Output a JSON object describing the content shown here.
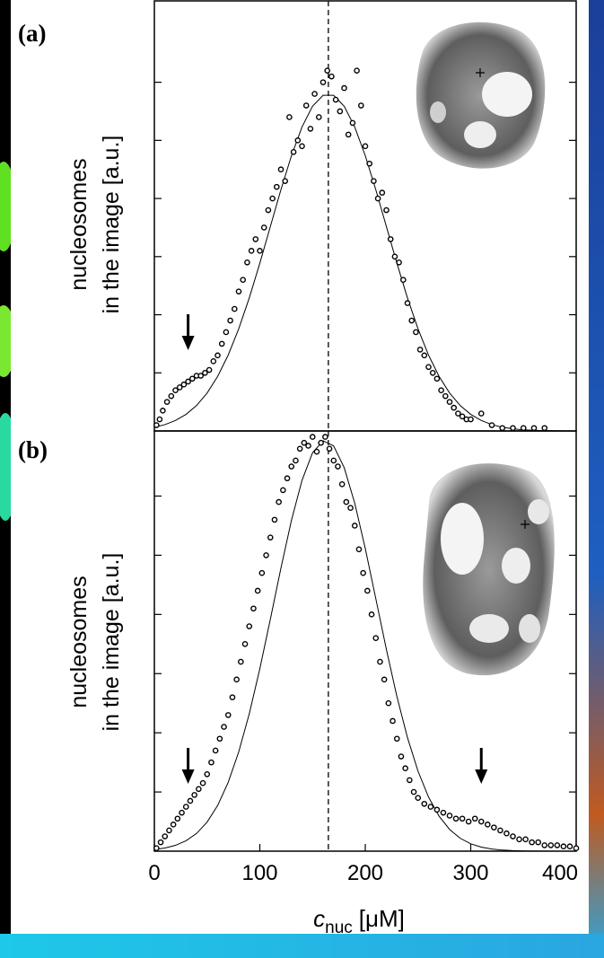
{
  "chart_data": [
    {
      "type": "scatter",
      "panel_label": "(a)",
      "y_label": [
        "nucleosomes",
        "in the image [a.u.]"
      ],
      "xlim": [
        0,
        400
      ],
      "ylim": [
        0,
        7.4
      ],
      "yticks": [
        1,
        2,
        3,
        4,
        5,
        6
      ],
      "vline_x": 165,
      "arrows_x": [
        32
      ],
      "series": [
        {
          "type": "line",
          "color": "#000000",
          "x": [
            0,
            10,
            20,
            30,
            40,
            50,
            60,
            70,
            80,
            90,
            100,
            110,
            120,
            130,
            140,
            150,
            160,
            170,
            180,
            190,
            200,
            210,
            220,
            230,
            240,
            250,
            260,
            270,
            280,
            290,
            300,
            310,
            320,
            330,
            340,
            350,
            360,
            370,
            380,
            390,
            400
          ],
          "values": [
            0.064,
            0.109,
            0.18,
            0.285,
            0.438,
            0.652,
            0.938,
            1.305,
            1.758,
            2.289,
            2.886,
            3.518,
            4.15,
            4.737,
            5.231,
            5.588,
            5.776,
            5.776,
            5.588,
            5.231,
            4.737,
            4.15,
            3.518,
            2.886,
            2.289,
            1.758,
            1.305,
            0.938,
            0.652,
            0.438,
            0.285,
            0.18,
            0.109,
            0.064,
            0.037,
            0.02,
            0.011,
            0.006,
            0.003,
            0.001,
            0.001
          ]
        },
        {
          "type": "scatter",
          "color": "#000000",
          "x": [
            2,
            5,
            8,
            12,
            16,
            20,
            24,
            28,
            32,
            36,
            40,
            44,
            48,
            52,
            56,
            60,
            64,
            68,
            72,
            76,
            80,
            84,
            88,
            92,
            96,
            100,
            104,
            108,
            112,
            116,
            120,
            124,
            128,
            132,
            136,
            140,
            144,
            148,
            152,
            156,
            160,
            164,
            168,
            172,
            176,
            180,
            184,
            188,
            192,
            196,
            200,
            204,
            208,
            212,
            216,
            220,
            224,
            228,
            232,
            236,
            240,
            244,
            248,
            252,
            256,
            260,
            264,
            268,
            272,
            276,
            280,
            284,
            288,
            292,
            296,
            300,
            310,
            320,
            330,
            340,
            350,
            360,
            370
          ],
          "values": [
            0.1,
            0.2,
            0.35,
            0.5,
            0.6,
            0.7,
            0.75,
            0.8,
            0.85,
            0.9,
            0.95,
            0.95,
            1.0,
            1.05,
            1.2,
            1.3,
            1.5,
            1.7,
            1.9,
            2.1,
            2.4,
            2.6,
            2.9,
            3.1,
            3.3,
            3.1,
            3.5,
            3.8,
            4.0,
            4.2,
            4.5,
            4.3,
            5.4,
            4.8,
            5.0,
            4.9,
            5.6,
            5.2,
            5.8,
            5.4,
            6.0,
            6.2,
            6.1,
            5.7,
            5.5,
            5.9,
            5.1,
            5.3,
            6.2,
            5.6,
            4.9,
            4.6,
            4.3,
            4.0,
            4.1,
            3.8,
            3.3,
            3.0,
            2.9,
            2.6,
            2.2,
            1.9,
            1.7,
            1.4,
            1.3,
            1.1,
            1.0,
            0.9,
            0.7,
            0.6,
            0.5,
            0.4,
            0.3,
            0.25,
            0.2,
            0.2,
            0.3,
            0.1,
            0.05,
            0.05,
            0.05,
            0.05,
            0.05
          ]
        }
      ]
    },
    {
      "type": "scatter",
      "panel_label": "(b)",
      "y_label": [
        "nucleosomes",
        "in the image [a.u.]"
      ],
      "x_label": {
        "symbol": "c",
        "subscript": "nuc",
        "unit": "[μM]"
      },
      "xlim": [
        0,
        400
      ],
      "ylim": [
        0,
        7.1
      ],
      "xticks": [
        0,
        100,
        200,
        300,
        400
      ],
      "yticks": [
        1,
        2,
        3,
        4,
        5,
        6
      ],
      "vline_x": 165,
      "arrows_x": [
        32,
        310
      ],
      "series": [
        {
          "type": "line",
          "color": "#000000",
          "x": [
            0,
            10,
            20,
            30,
            40,
            50,
            60,
            70,
            80,
            90,
            100,
            110,
            120,
            130,
            140,
            150,
            160,
            170,
            180,
            190,
            200,
            210,
            220,
            230,
            240,
            250,
            260,
            270,
            280,
            290,
            300,
            310,
            320,
            330,
            340,
            350,
            360,
            370,
            380,
            390,
            400
          ],
          "values": [
            0.027,
            0.053,
            0.098,
            0.175,
            0.299,
            0.49,
            0.771,
            1.161,
            1.678,
            2.321,
            3.081,
            3.92,
            4.782,
            5.59,
            6.265,
            6.732,
            6.934,
            6.847,
            6.481,
            5.881,
            5.115,
            4.266,
            3.41,
            2.613,
            1.92,
            1.352,
            0.913,
            0.591,
            0.366,
            0.218,
            0.124,
            0.068,
            0.036,
            0.018,
            0.009,
            0.004,
            0.002,
            0.001,
            0,
            0,
            0
          ]
        },
        {
          "type": "scatter",
          "color": "#000000",
          "x": [
            2,
            6,
            10,
            14,
            18,
            22,
            26,
            30,
            34,
            38,
            42,
            46,
            50,
            54,
            58,
            62,
            66,
            70,
            74,
            78,
            82,
            86,
            90,
            94,
            98,
            102,
            106,
            110,
            114,
            118,
            122,
            126,
            130,
            134,
            138,
            142,
            146,
            150,
            154,
            158,
            162,
            166,
            170,
            174,
            178,
            182,
            186,
            190,
            194,
            198,
            202,
            206,
            210,
            214,
            218,
            222,
            226,
            230,
            234,
            238,
            242,
            246,
            250,
            256,
            262,
            268,
            274,
            280,
            286,
            292,
            298,
            304,
            310,
            316,
            322,
            328,
            334,
            340,
            346,
            352,
            358,
            364,
            370,
            376,
            382,
            388,
            394,
            400
          ],
          "values": [
            0.05,
            0.15,
            0.25,
            0.35,
            0.45,
            0.55,
            0.65,
            0.75,
            0.85,
            0.95,
            1.05,
            1.15,
            1.3,
            1.5,
            1.7,
            1.9,
            2.1,
            2.3,
            2.6,
            2.9,
            3.2,
            3.5,
            3.8,
            4.1,
            4.4,
            4.7,
            5.0,
            5.3,
            5.6,
            5.9,
            6.1,
            6.3,
            6.5,
            6.6,
            6.8,
            6.9,
            6.85,
            7.0,
            6.75,
            6.9,
            7.0,
            6.8,
            6.6,
            6.5,
            6.2,
            5.9,
            5.8,
            5.5,
            5.1,
            4.7,
            4.4,
            4.0,
            3.6,
            3.2,
            2.9,
            2.5,
            2.2,
            1.9,
            1.6,
            1.4,
            1.2,
            1.0,
            0.9,
            0.8,
            0.75,
            0.7,
            0.65,
            0.6,
            0.55,
            0.55,
            0.5,
            0.55,
            0.5,
            0.45,
            0.4,
            0.35,
            0.3,
            0.25,
            0.2,
            0.2,
            0.15,
            0.15,
            0.1,
            0.1,
            0.1,
            0.08,
            0.08,
            0.05
          ]
        }
      ]
    }
  ]
}
